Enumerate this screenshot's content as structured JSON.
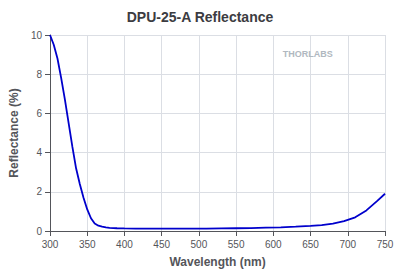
{
  "chart_data": {
    "type": "line",
    "title": "DPU-25-A Reflectance",
    "xlabel": "Wavelength (nm)",
    "ylabel": "Reflectance (%)",
    "x": [
      300,
      305,
      310,
      315,
      320,
      325,
      330,
      335,
      340,
      345,
      350,
      355,
      360,
      365,
      370,
      375,
      380,
      390,
      400,
      415,
      430,
      450,
      470,
      490,
      510,
      530,
      550,
      570,
      590,
      610,
      630,
      650,
      665,
      680,
      695,
      710,
      725,
      740,
      750
    ],
    "values": [
      10.0,
      9.5,
      8.8,
      7.8,
      6.7,
      5.5,
      4.3,
      3.2,
      2.4,
      1.7,
      1.1,
      0.65,
      0.38,
      0.27,
      0.22,
      0.18,
      0.16,
      0.14,
      0.13,
      0.12,
      0.12,
      0.12,
      0.12,
      0.12,
      0.12,
      0.13,
      0.14,
      0.15,
      0.17,
      0.19,
      0.22,
      0.26,
      0.3,
      0.38,
      0.5,
      0.7,
      1.05,
      1.55,
      1.9
    ],
    "color": "#0000cc",
    "xlim": [
      300,
      750
    ],
    "ylim": [
      0,
      10
    ],
    "xticks": [
      300,
      350,
      400,
      450,
      500,
      550,
      600,
      650,
      700,
      750
    ],
    "yticks": [
      0,
      2,
      4,
      6,
      8,
      10
    ],
    "grid": true,
    "annotations": [
      {
        "text": "THORLABS"
      }
    ]
  }
}
